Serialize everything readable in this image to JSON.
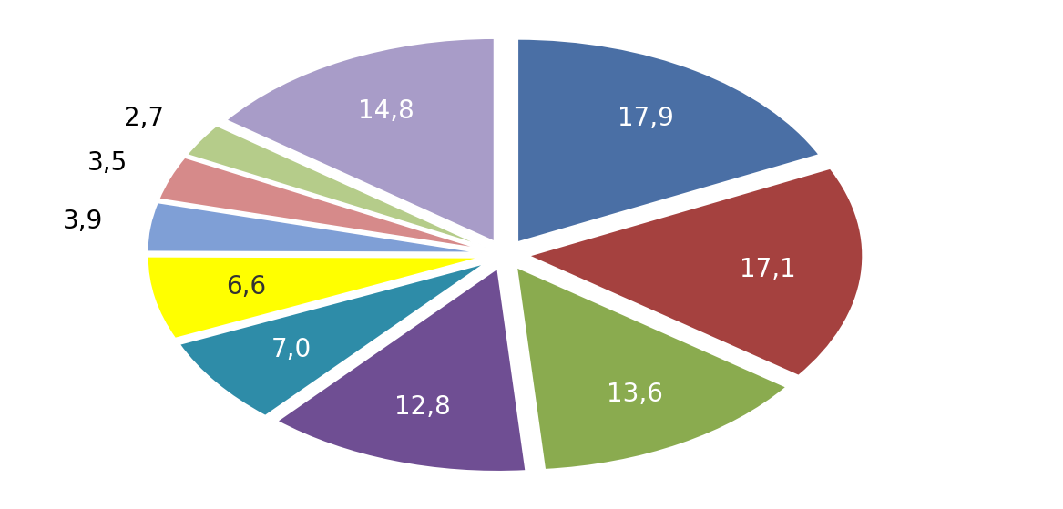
{
  "chart_data": {
    "type": "pie",
    "values": [
      17.9,
      17.1,
      13.6,
      12.8,
      7.0,
      6.6,
      3.9,
      3.5,
      2.7,
      14.8
    ],
    "value_labels": [
      "17,9",
      "17,1",
      "13,6",
      "12,8",
      "7,0",
      "6,6",
      "3,9",
      "3,5",
      "2,7",
      "14,8"
    ],
    "colors": [
      "#4a6fa5",
      "#a5413f",
      "#8aab4f",
      "#6f4e93",
      "#2e8ca8",
      "#ffff00",
      "#7f9fd6",
      "#d68a8a",
      "#b5cc8a",
      "#a89cc8"
    ],
    "data_labels": true
  }
}
